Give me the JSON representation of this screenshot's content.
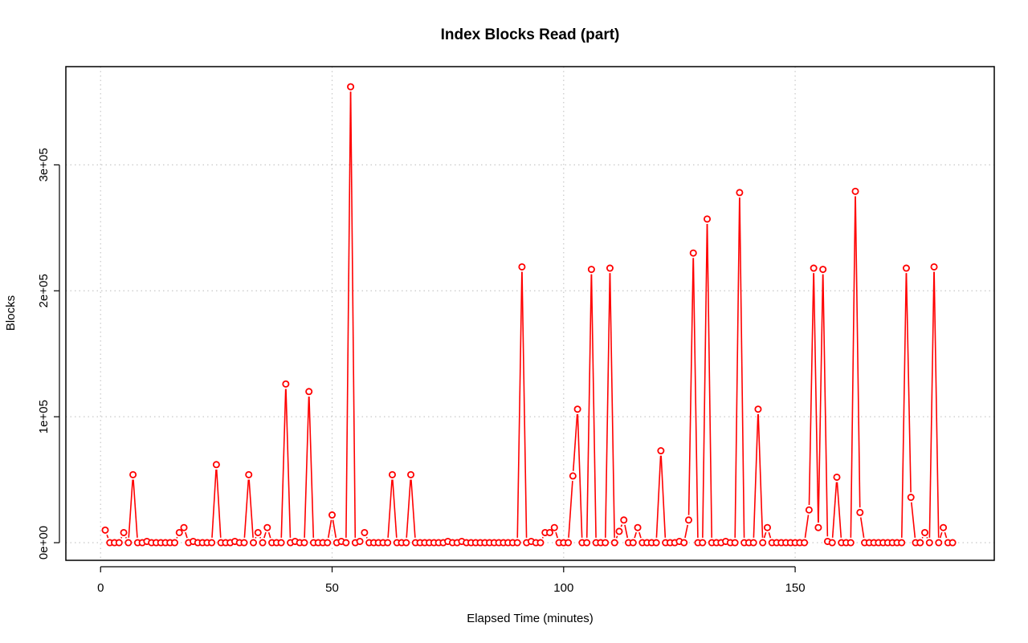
{
  "chart_data": {
    "type": "line",
    "title": "Index Blocks Read (part)",
    "xlabel": "Elapsed Time (minutes)",
    "ylabel": "Blocks",
    "xlim": [
      -7.5,
      193
    ],
    "ylim": [
      -14000,
      378000
    ],
    "x_ticks": [
      0,
      50,
      100,
      150
    ],
    "x_tick_labels": [
      "0",
      "50",
      "100",
      "150"
    ],
    "y_ticks": [
      0,
      100000,
      200000,
      300000
    ],
    "y_tick_labels": [
      "0e+00",
      "1e+05",
      "2e+05",
      "3e+05"
    ],
    "grid": true,
    "legend": "none",
    "series": [
      {
        "color": "#ff0000",
        "marker": "open-circle",
        "x": [
          1,
          2,
          3,
          4,
          5,
          6,
          7,
          8,
          9,
          10,
          11,
          12,
          13,
          14,
          15,
          16,
          17,
          18,
          19,
          20,
          21,
          22,
          23,
          24,
          25,
          26,
          27,
          28,
          29,
          30,
          31,
          32,
          33,
          34,
          35,
          36,
          37,
          38,
          39,
          40,
          41,
          42,
          43,
          44,
          45,
          46,
          47,
          48,
          49,
          50,
          51,
          52,
          53,
          54,
          55,
          56,
          57,
          58,
          59,
          60,
          61,
          62,
          63,
          64,
          65,
          66,
          67,
          68,
          69,
          70,
          71,
          72,
          73,
          74,
          75,
          76,
          77,
          78,
          79,
          80,
          81,
          82,
          83,
          84,
          85,
          86,
          87,
          88,
          89,
          90,
          91,
          92,
          93,
          94,
          95,
          96,
          97,
          98,
          99,
          100,
          101,
          102,
          103,
          104,
          105,
          106,
          107,
          108,
          109,
          110,
          111,
          112,
          113,
          114,
          115,
          116,
          117,
          118,
          119,
          120,
          121,
          122,
          123,
          124,
          125,
          126,
          127,
          128,
          129,
          130,
          131,
          132,
          133,
          134,
          135,
          136,
          137,
          138,
          139,
          140,
          141,
          142,
          143,
          144,
          145,
          146,
          147,
          148,
          149,
          150,
          151,
          152,
          153,
          154,
          155,
          156,
          157,
          158,
          159,
          160,
          161,
          162,
          163,
          164,
          165,
          166,
          167,
          168,
          169,
          170,
          171,
          172,
          173,
          174,
          175,
          176,
          177,
          178,
          179,
          180,
          181,
          182,
          183,
          184
        ],
        "y": [
          10000,
          0,
          0,
          0,
          8000,
          0,
          54000,
          0,
          0,
          1000,
          0,
          0,
          0,
          0,
          0,
          0,
          8000,
          12000,
          0,
          1000,
          0,
          0,
          0,
          0,
          62000,
          0,
          0,
          0,
          1000,
          0,
          0,
          54000,
          0,
          8000,
          0,
          12000,
          0,
          0,
          0,
          126000,
          0,
          1000,
          0,
          0,
          120000,
          0,
          0,
          0,
          0,
          22000,
          0,
          1000,
          0,
          362000,
          0,
          1000,
          8000,
          0,
          0,
          0,
          0,
          0,
          54000,
          0,
          0,
          0,
          54000,
          0,
          0,
          0,
          0,
          0,
          0,
          0,
          1000,
          0,
          0,
          1000,
          0,
          0,
          0,
          0,
          0,
          0,
          0,
          0,
          0,
          0,
          0,
          0,
          219000,
          0,
          1000,
          0,
          0,
          8000,
          8000,
          12000,
          0,
          0,
          0,
          53000,
          106000,
          0,
          0,
          217000,
          0,
          0,
          0,
          218000,
          0,
          9000,
          18000,
          0,
          0,
          12000,
          0,
          0,
          0,
          0,
          73000,
          0,
          0,
          0,
          1000,
          0,
          18000,
          230000,
          0,
          0,
          257000,
          0,
          0,
          0,
          1000,
          0,
          0,
          278000,
          0,
          0,
          0,
          106000,
          0,
          12000,
          0,
          0,
          0,
          0,
          0,
          0,
          0,
          0,
          26000,
          218000,
          12000,
          217000,
          1000,
          0,
          52000,
          0,
          0,
          0,
          279000,
          24000,
          0,
          0,
          0,
          0,
          0,
          0,
          0,
          0,
          0,
          218000,
          36000,
          0,
          0,
          8000,
          0,
          219000,
          0,
          12000,
          0,
          0
        ]
      }
    ]
  }
}
